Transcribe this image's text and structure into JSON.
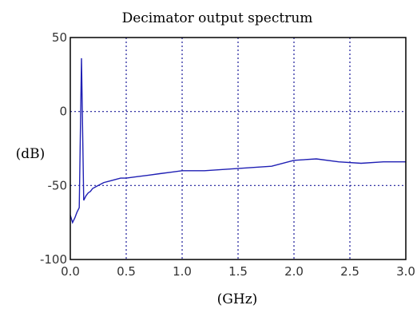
{
  "chart_data": {
    "type": "line",
    "title": "Decimator output spectrum",
    "xlabel": "(GHz)",
    "ylabel": "(dB)",
    "xlim": [
      0.0,
      3.0
    ],
    "ylim": [
      -100,
      50
    ],
    "xticks": [
      "0.0",
      "0.5",
      "1.0",
      "1.5",
      "2.0",
      "2.5",
      "3.0"
    ],
    "yticks": [
      "50",
      "0",
      "-50",
      "-100"
    ],
    "grid": true,
    "grid_style": "dotted",
    "series": [
      {
        "color": "#1f1fb4",
        "x": [
          0.0,
          0.02,
          0.04,
          0.06,
          0.08,
          0.1,
          0.12,
          0.14,
          0.16,
          0.18,
          0.2,
          0.25,
          0.3,
          0.35,
          0.4,
          0.45,
          0.5,
          0.6,
          0.7,
          0.8,
          0.9,
          1.0,
          1.2,
          1.4,
          1.6,
          1.8,
          2.0,
          2.2,
          2.4,
          2.6,
          2.8,
          3.0
        ],
        "y": [
          -70,
          -75,
          -72,
          -68,
          -65,
          36,
          -60,
          -57,
          -55,
          -54,
          -52,
          -50,
          -48,
          -47,
          -46,
          -45,
          -45,
          -44,
          -43,
          -42,
          -41,
          -40,
          -40,
          -39,
          -38,
          -37,
          -33,
          -32,
          -34,
          -35,
          -34,
          -34
        ]
      }
    ]
  }
}
